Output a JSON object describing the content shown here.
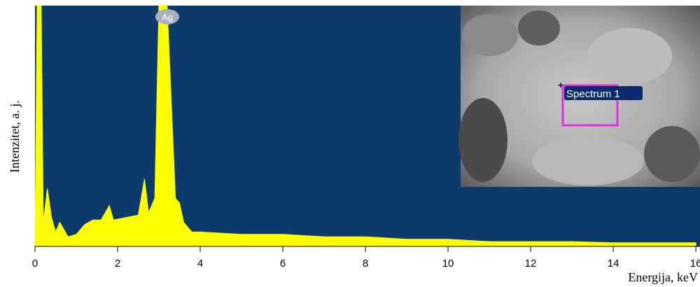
{
  "chart_data": {
    "type": "area",
    "x_label": "Energija, keV",
    "y_label": "Intenzitet, a. j.",
    "peak_label": "Ag",
    "inset_label": "Spectrum 1",
    "x": [
      0,
      0.05,
      0.15,
      0.2,
      0.3,
      0.4,
      0.5,
      0.6,
      0.8,
      1.0,
      1.2,
      1.4,
      1.6,
      1.8,
      1.9,
      2.2,
      2.5,
      2.65,
      2.75,
      2.9,
      3.0,
      3.2,
      3.3,
      3.4,
      3.5,
      3.6,
      3.8,
      4.0,
      5,
      6,
      7,
      8,
      9,
      10,
      11,
      12,
      13,
      14,
      15,
      16
    ],
    "values": [
      0,
      100,
      100,
      10,
      24,
      12,
      6,
      10,
      4,
      5,
      9,
      11,
      11,
      17,
      11,
      12,
      13,
      28,
      14,
      20,
      100,
      100,
      60,
      20,
      18,
      10,
      6,
      6,
      5,
      5,
      4,
      4,
      3,
      3,
      2,
      2,
      2,
      1.5,
      1.5,
      1.5
    ],
    "color": "#ffff00",
    "background": "#0b3a6b",
    "xlim": [
      0,
      16.1
    ],
    "ylim": [
      0,
      100
    ],
    "xticks": [
      0,
      2,
      4,
      6,
      8,
      10,
      12,
      14,
      16
    ]
  }
}
